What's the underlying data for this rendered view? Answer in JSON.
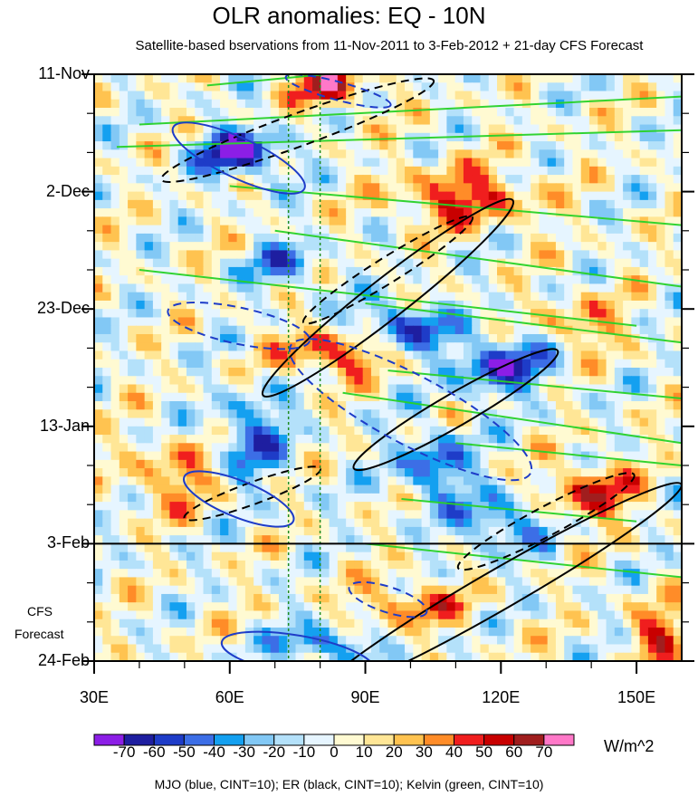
{
  "chart_data": {
    "type": "heatmap",
    "title": "OLR anomalies: EQ - 10N",
    "subtitle": "Satellite-based bservations from 11-Nov-2011 to 3-Feb-2012 + 21-day CFS Forecast",
    "x_ticks": [
      {
        "value": 30,
        "label": "30E"
      },
      {
        "value": 60,
        "label": "60E"
      },
      {
        "value": 90,
        "label": "90E"
      },
      {
        "value": 120,
        "label": "120E"
      },
      {
        "value": 150,
        "label": "150E"
      }
    ],
    "xlim": [
      30,
      160
    ],
    "y_ticks": [
      {
        "day": 0,
        "label": "11-Nov"
      },
      {
        "day": 21,
        "label": "2-Dec"
      },
      {
        "day": 42,
        "label": "23-Dec"
      },
      {
        "day": 63,
        "label": "13-Jan"
      },
      {
        "day": 84,
        "label": "3-Feb"
      },
      {
        "day": 105,
        "label": "24-Feb"
      }
    ],
    "ylim_days": [
      0,
      105
    ],
    "forecast_start_day": 84,
    "forecast_label_line1": "CFS",
    "forecast_label_line2": "Forecast",
    "reference_lon_lines": [
      73,
      80
    ],
    "colorbar": {
      "units": "W/m^2",
      "levels": [
        -70,
        -60,
        -50,
        -40,
        -30,
        -20,
        -10,
        0,
        10,
        20,
        30,
        40,
        50,
        60,
        70
      ],
      "colors": [
        "#8c1ee6",
        "#1e1ea0",
        "#1e3cc8",
        "#3c6ee6",
        "#14a0f0",
        "#82c8f5",
        "#b4e1fa",
        "#e6f5ff",
        "#fffad2",
        "#ffe696",
        "#ffc350",
        "#ff8c28",
        "#f01e1e",
        "#c80000",
        "#a01e1e",
        "#ff78c8"
      ]
    },
    "legend": "MJO (blue, CINT=10); ER (black, CINT=10); Kelvin (green, CINT=10)",
    "overlays": [
      {
        "name": "MJO",
        "color": "#1e3cc8"
      },
      {
        "name": "ER",
        "color": "#000000"
      },
      {
        "name": "Kelvin",
        "color": "#28d228"
      }
    ]
  }
}
